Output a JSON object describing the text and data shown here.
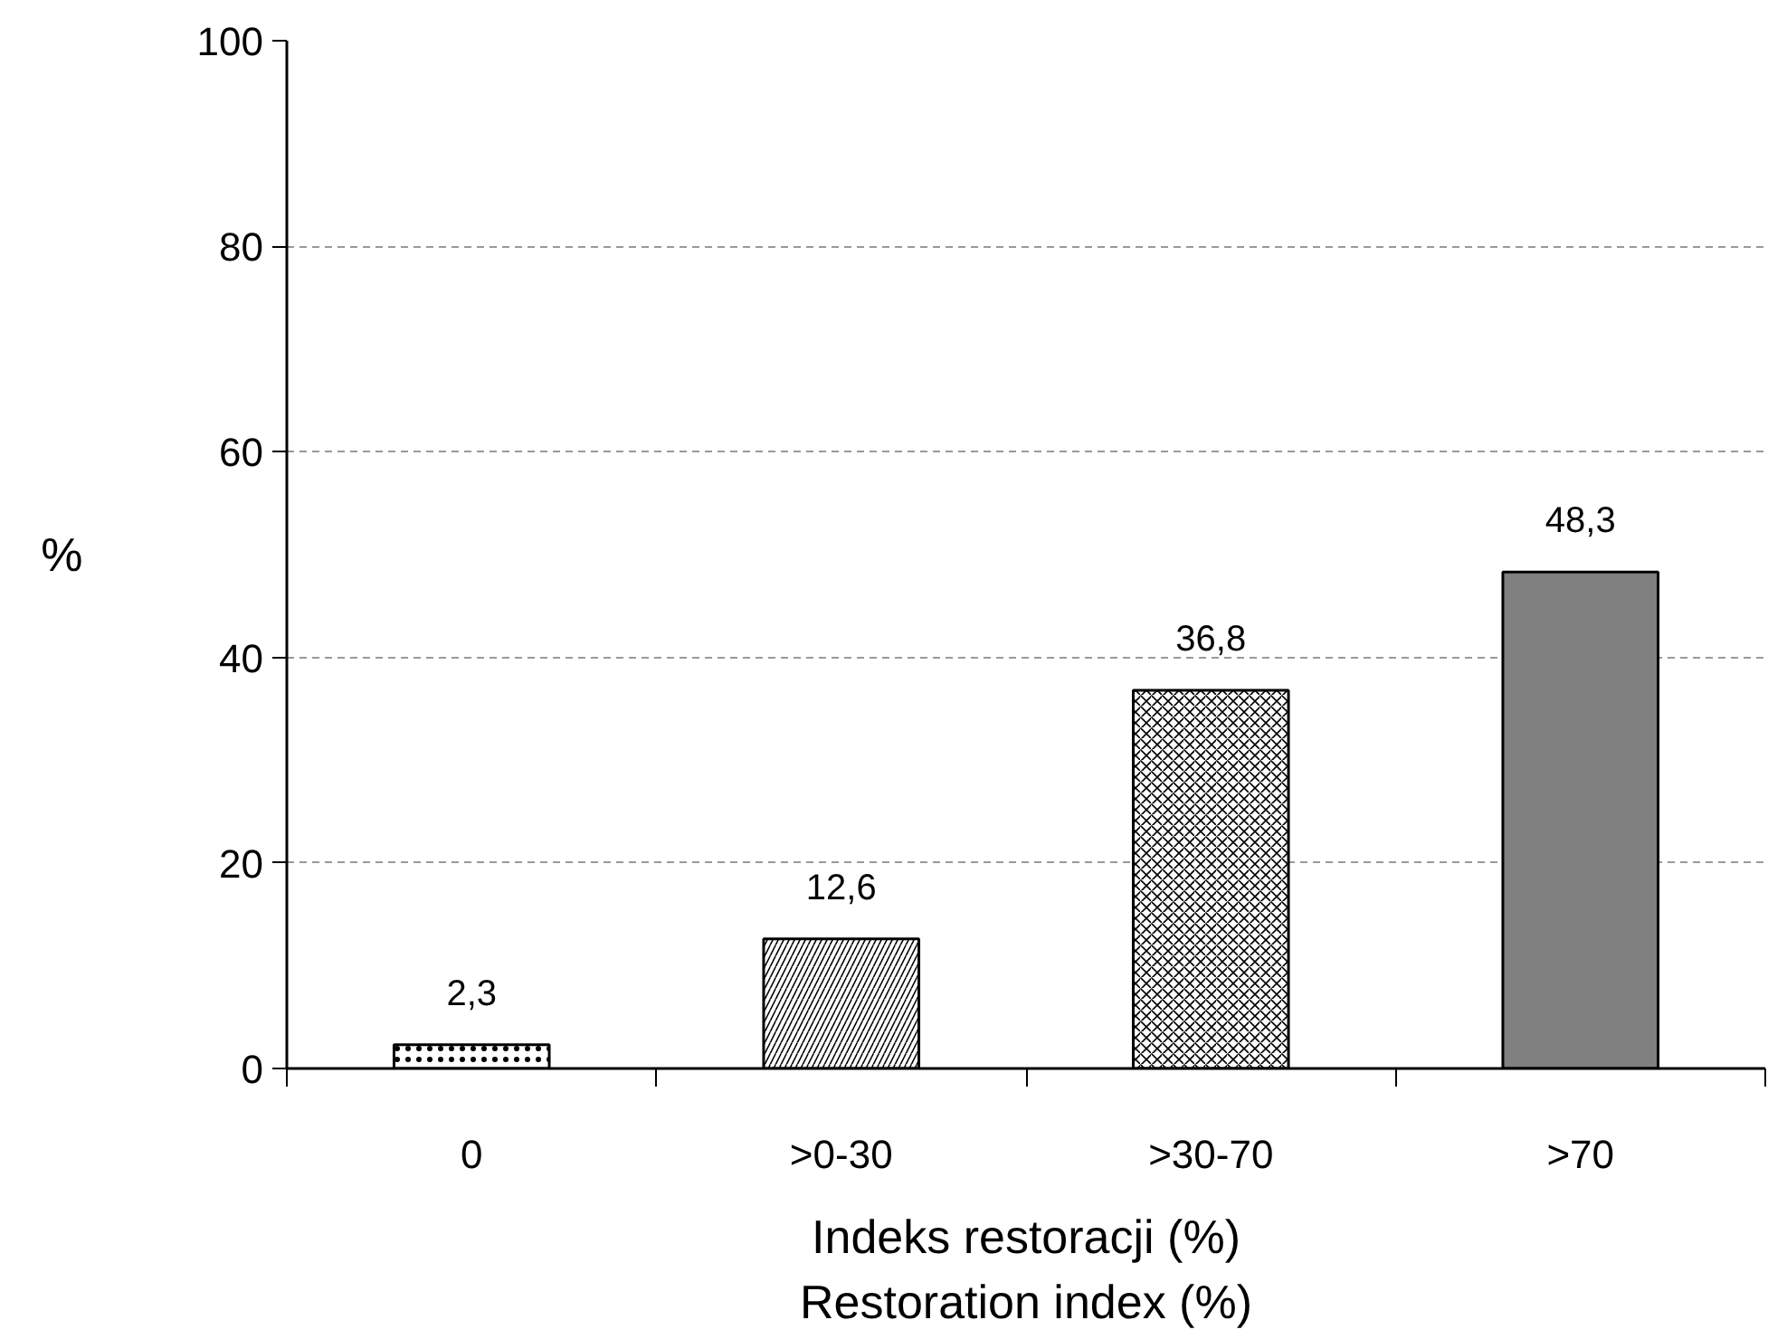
{
  "chart_data": {
    "type": "bar",
    "categories": [
      "0",
      ">0-30",
      ">30-70",
      ">70"
    ],
    "values": [
      2.3,
      12.6,
      36.8,
      48.3
    ],
    "colors": [
      "#ffffff",
      "#ffffff",
      "#ffffff",
      "#808080"
    ],
    "value_labels": [
      "2,3",
      "12,6",
      "36,8",
      "48,3"
    ],
    "xlabel": "Indeks restoracji (%)\nRestoration index (%)",
    "ylabel": "%",
    "ylim": [
      0,
      100
    ],
    "yticks": [
      0,
      20,
      40,
      60,
      80,
      100
    ],
    "grid": "y"
  }
}
